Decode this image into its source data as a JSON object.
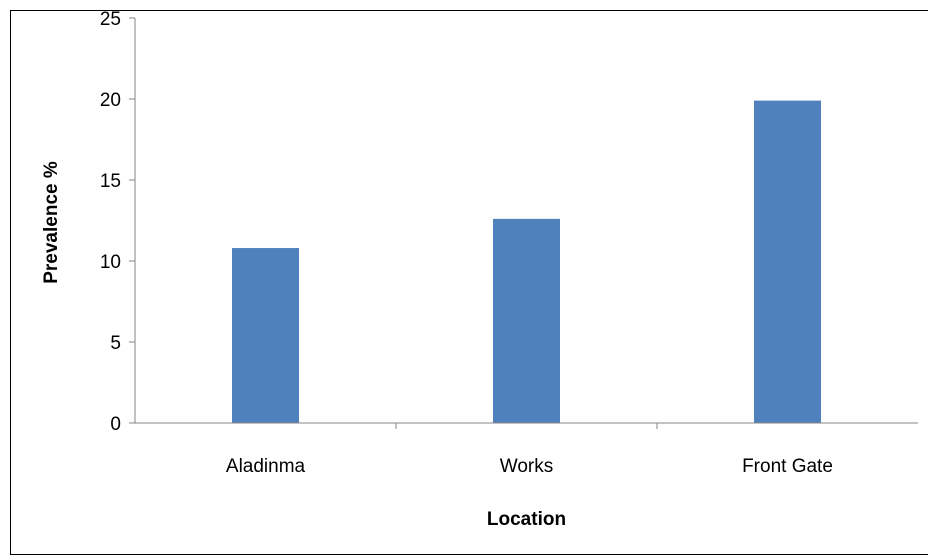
{
  "chart_data": {
    "type": "bar",
    "categories": [
      "Aladinma",
      "Works",
      "Front Gate"
    ],
    "values": [
      10.8,
      12.6,
      19.9
    ],
    "xlabel": "Location",
    "ylabel": "Prevalence %",
    "ylim": [
      0,
      25
    ],
    "yticks": [
      "0",
      "5",
      "10",
      "15",
      "20",
      "25"
    ],
    "grid": false,
    "bar_color": "#4f81bd"
  }
}
